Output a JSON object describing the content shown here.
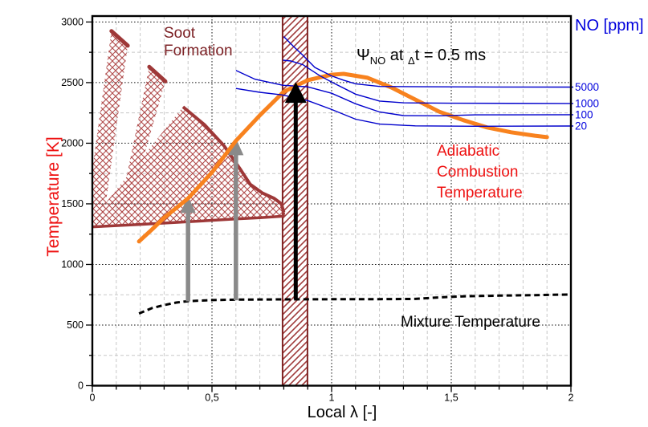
{
  "axis": {
    "x_label": "Local λ [-]",
    "y_label": "Temperature [K]",
    "y2_label": "NO [ppm]",
    "x_ticks": [
      {
        "v": 0,
        "label": "0"
      },
      {
        "v": 0.5,
        "label": "0,5"
      },
      {
        "v": 1,
        "label": "1"
      },
      {
        "v": 1.5,
        "label": "1,5"
      },
      {
        "v": 2,
        "label": "2"
      }
    ],
    "y_ticks": [
      {
        "v": 0,
        "label": "0"
      },
      {
        "v": 500,
        "label": "500"
      },
      {
        "v": 1000,
        "label": "1000"
      },
      {
        "v": 1500,
        "label": "1500"
      },
      {
        "v": 2000,
        "label": "2000"
      },
      {
        "v": 2500,
        "label": "2500"
      },
      {
        "v": 3000,
        "label": "3000"
      }
    ]
  },
  "annotations": {
    "soot": "Soot\nFormation",
    "adiabatic": "Adiabatic\nCombustion\nTemperature",
    "mixture": "Mixture Temperature",
    "psi": {
      "psi": "Ψ",
      "sub1": "NO",
      "mid": " at ",
      "sub2": "Δ",
      "rest": "t = 0.5 ms"
    }
  },
  "colors": {
    "orange": "#F8821E",
    "blue": "#0000CC",
    "blue_text": "#0000DD",
    "red_text": "#EE1111",
    "maroon_text": "#7C2125",
    "dark_red": "#9E3838",
    "hatch_red": "#B04A4A",
    "band_border": "#7E2222",
    "band_hatch": "#A03C3C",
    "gray_arrow": "#8A8A8A",
    "black": "#000000",
    "grid_minor": "#C8C8C8",
    "grid_major": "#1A1A1A"
  },
  "chart_data": {
    "type": "line",
    "title": "",
    "xlabel": "Local λ [-]",
    "ylabel": "Temperature [K]",
    "y2label": "NO [ppm]",
    "axes": {
      "x_min": 0,
      "x_max": 2,
      "y_min": 0,
      "y_max": 3000,
      "x_major_step": 0.5,
      "x_minor_step": 0.1,
      "y_major_step": 500,
      "y_minor_step": 250,
      "decimal_separator": ","
    },
    "series": [
      {
        "name": "adiabatic_combustion_temperature",
        "color_key": "orange",
        "width": 5,
        "points": [
          [
            0.195,
            1190
          ],
          [
            0.25,
            1290
          ],
          [
            0.3,
            1385
          ],
          [
            0.4,
            1545
          ],
          [
            0.5,
            1760
          ],
          [
            0.6,
            2020
          ],
          [
            0.7,
            2230
          ],
          [
            0.8,
            2425
          ],
          [
            0.9,
            2520
          ],
          [
            1.0,
            2565
          ],
          [
            1.05,
            2572
          ],
          [
            1.15,
            2540
          ],
          [
            1.25,
            2460
          ],
          [
            1.35,
            2360
          ],
          [
            1.45,
            2260
          ],
          [
            1.55,
            2190
          ],
          [
            1.65,
            2130
          ],
          [
            1.75,
            2090
          ],
          [
            1.85,
            2062
          ],
          [
            1.9,
            2050
          ]
        ]
      },
      {
        "name": "no_iso_5000",
        "color_key": "blue",
        "width": 1.4,
        "points": [
          [
            0.8,
            2880
          ],
          [
            0.84,
            2800
          ],
          [
            0.88,
            2725
          ],
          [
            0.93,
            2625
          ],
          [
            1.0,
            2555
          ],
          [
            1.05,
            2520
          ],
          [
            1.1,
            2490
          ],
          [
            1.2,
            2468
          ],
          [
            1.4,
            2466
          ],
          [
            1.7,
            2464
          ],
          [
            2.0,
            2463
          ]
        ]
      },
      {
        "name": "no_iso_1000",
        "color_key": "blue",
        "width": 1.4,
        "points": [
          [
            0.797,
            2685
          ],
          [
            0.83,
            2678
          ],
          [
            0.88,
            2648
          ],
          [
            0.95,
            2558
          ],
          [
            1.0,
            2505
          ],
          [
            1.1,
            2405
          ],
          [
            1.2,
            2348
          ],
          [
            1.3,
            2333
          ],
          [
            1.5,
            2330
          ],
          [
            2.0,
            2328
          ]
        ]
      },
      {
        "name": "no_iso_100",
        "color_key": "blue",
        "width": 1.4,
        "points": [
          [
            0.6,
            2600
          ],
          [
            0.68,
            2528
          ],
          [
            0.795,
            2478
          ],
          [
            0.9,
            2465
          ],
          [
            1.0,
            2412
          ],
          [
            1.1,
            2325
          ],
          [
            1.2,
            2258
          ],
          [
            1.3,
            2228
          ],
          [
            1.45,
            2226
          ],
          [
            1.6,
            2234
          ],
          [
            2.0,
            2235
          ]
        ]
      },
      {
        "name": "no_iso_20",
        "color_key": "blue",
        "width": 1.4,
        "points": [
          [
            0.6,
            2452
          ],
          [
            0.7,
            2420
          ],
          [
            0.795,
            2398
          ],
          [
            0.9,
            2352
          ],
          [
            1.0,
            2278
          ],
          [
            1.1,
            2198
          ],
          [
            1.2,
            2158
          ],
          [
            1.35,
            2143
          ],
          [
            1.6,
            2140
          ],
          [
            2.0,
            2142
          ]
        ]
      },
      {
        "name": "mixture_temperature",
        "color_key": "black",
        "width": 3,
        "dash": "7 4.5",
        "points": [
          [
            0.195,
            595
          ],
          [
            0.25,
            640
          ],
          [
            0.3,
            665
          ],
          [
            0.35,
            685
          ],
          [
            0.4,
            697
          ],
          [
            0.5,
            706
          ],
          [
            0.6,
            710
          ],
          [
            0.8,
            712
          ],
          [
            1.0,
            713
          ],
          [
            1.2,
            714
          ],
          [
            1.35,
            716
          ],
          [
            1.45,
            728
          ],
          [
            1.55,
            737
          ],
          [
            1.7,
            743
          ],
          [
            1.85,
            747
          ],
          [
            2.0,
            752
          ]
        ]
      }
    ],
    "no_level_labels": [
      {
        "label": "5000",
        "T": 2463
      },
      {
        "label": "1000",
        "T": 2328
      },
      {
        "label": "100",
        "T": 2235
      },
      {
        "label": "20",
        "T": 2142
      }
    ],
    "regions": {
      "soot_band": {
        "x0": 0.795,
        "x1": 0.899
      },
      "soot_main_wedge": {
        "polygon": [
          [
            0.379,
            2300
          ],
          [
            0.47,
            2150
          ],
          [
            0.55,
            1980
          ],
          [
            0.62,
            1780
          ],
          [
            0.66,
            1660
          ],
          [
            0.71,
            1590
          ],
          [
            0.76,
            1545
          ],
          [
            0.79,
            1500
          ],
          [
            0.8,
            1430
          ],
          [
            0.797,
            1395
          ],
          [
            0.7,
            1385
          ],
          [
            0.6,
            1375
          ],
          [
            0.4,
            1352
          ],
          [
            0.2,
            1330
          ],
          [
            0.0,
            1310
          ],
          [
            0.02,
            1420
          ]
        ],
        "cap": [
          [
            0.379,
            2300
          ],
          [
            0.47,
            2150
          ],
          [
            0.55,
            1980
          ],
          [
            0.62,
            1780
          ],
          [
            0.66,
            1660
          ],
          [
            0.71,
            1590
          ],
          [
            0.76,
            1545
          ],
          [
            0.79,
            1500
          ],
          [
            0.8,
            1430
          ]
        ],
        "bottom": [
          [
            0.0,
            1310
          ],
          [
            0.2,
            1330
          ],
          [
            0.4,
            1352
          ],
          [
            0.6,
            1375
          ],
          [
            0.7,
            1385
          ],
          [
            0.797,
            1398
          ],
          [
            0.8,
            1430
          ]
        ]
      },
      "soot_slivers": [
        {
          "polygon": [
            [
              0.08,
              2925
            ],
            [
              0.148,
              2805
            ],
            [
              0.048,
              1390
            ],
            [
              0.0,
              1330
            ],
            [
              0.0,
              1790
            ]
          ],
          "cap": [
            [
              0.08,
              2925
            ],
            [
              0.148,
              2805
            ]
          ]
        },
        {
          "polygon": [
            [
              0.238,
              2630
            ],
            [
              0.305,
              2510
            ],
            [
              0.148,
              1430
            ],
            [
              0.112,
              1430
            ]
          ],
          "cap": [
            [
              0.238,
              2630
            ],
            [
              0.305,
              2510
            ]
          ]
        }
      ]
    },
    "arrows": [
      {
        "x": 0.4,
        "base_T": 695,
        "tip_T": 1565,
        "style": "gray"
      },
      {
        "x": 0.6,
        "base_T": 704,
        "tip_T": 2040,
        "style": "gray"
      },
      {
        "x": 0.85,
        "base_T": 710,
        "tip_T": 2505,
        "style": "black"
      }
    ]
  }
}
